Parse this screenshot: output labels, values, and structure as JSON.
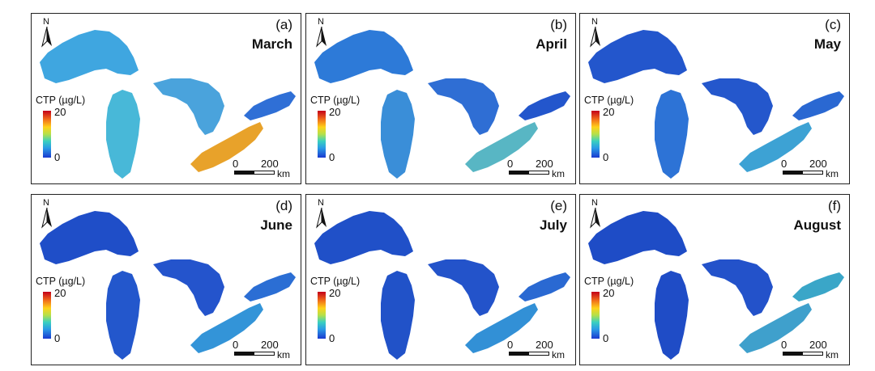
{
  "north_label": "N",
  "legend": {
    "title": "CTP (µg/L)",
    "max": "20",
    "min": "0"
  },
  "scale_bar": {
    "zero": "0",
    "distance": "200",
    "unit": "km"
  },
  "colors": {
    "low": "#1a3ad0",
    "mid": "#3ad0c0",
    "high": "#c4001a",
    "frame": "#222222"
  },
  "panels": [
    {
      "letter": "(a)",
      "month": "March",
      "lake_colors": {
        "superior": "#3fa6e0",
        "michigan": "#48b8d8",
        "huron": "#4aa3dc",
        "erie": "#e8a22a",
        "ontario": "#2f6fd6"
      }
    },
    {
      "letter": "(b)",
      "month": "April",
      "lake_colors": {
        "superior": "#2d7ad8",
        "michigan": "#3a8ed8",
        "huron": "#2f6ed4",
        "erie": "#58b6c4",
        "ontario": "#2356cc"
      }
    },
    {
      "letter": "(c)",
      "month": "May",
      "lake_colors": {
        "superior": "#2356cc",
        "michigan": "#2d73d6",
        "huron": "#2457cc",
        "erie": "#3da2d4",
        "ontario": "#2a68d2"
      }
    },
    {
      "letter": "(d)",
      "month": "June",
      "lake_colors": {
        "superior": "#1f4ec8",
        "michigan": "#2357cc",
        "huron": "#2454cc",
        "erie": "#3394d8",
        "ontario": "#2b6ed4"
      }
    },
    {
      "letter": "(e)",
      "month": "July",
      "lake_colors": {
        "superior": "#2050c8",
        "michigan": "#2152c8",
        "huron": "#2353ca",
        "erie": "#3290d6",
        "ontario": "#2a69d2"
      }
    },
    {
      "letter": "(f)",
      "month": "August",
      "lake_colors": {
        "superior": "#1e4cc6",
        "michigan": "#1f4cc6",
        "huron": "#2352ca",
        "erie": "#3fa0cc",
        "ontario": "#3aa6c8"
      }
    }
  ]
}
